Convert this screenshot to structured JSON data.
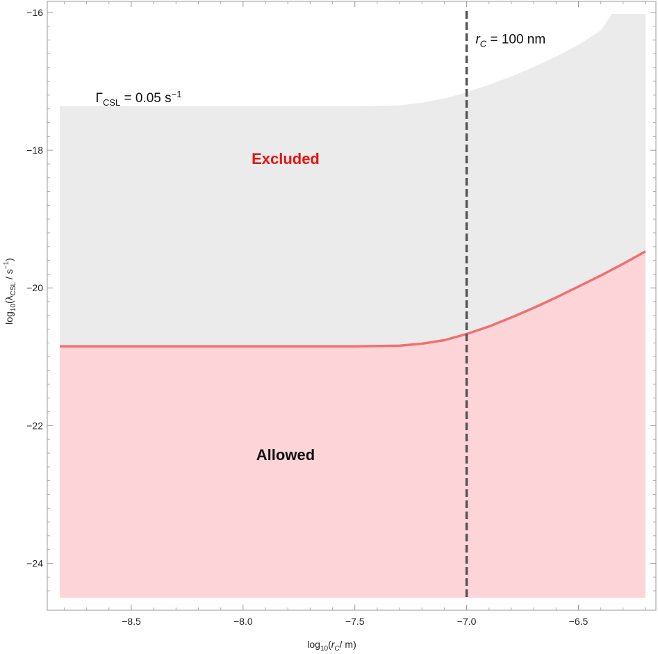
{
  "chart_data": {
    "type": "area",
    "xlabel_parts": {
      "pre": "log",
      "sub": "10",
      "mid": "(",
      "var": "r",
      "var_sub": "C",
      "post": "/ m)"
    },
    "ylabel_parts": {
      "pre": "log",
      "sub": "10",
      "mid": "(λ",
      "var_sub": "CSL",
      "post": " / s",
      "sup": "−1",
      "close": ")"
    },
    "xlim": [
      -8.82,
      -6.2
    ],
    "ylim": [
      -24.5,
      -16.0
    ],
    "x_ticks": [
      -8.5,
      -8.0,
      -7.5,
      -7.0,
      -6.5
    ],
    "x_tick_labels": [
      "−8.5",
      "−8.0",
      "−7.5",
      "−7.0",
      "−6.5"
    ],
    "y_ticks": [
      -24,
      -22,
      -20,
      -18,
      -16
    ],
    "y_tick_labels": [
      "−24",
      "−22",
      "−20",
      "−18",
      "−16"
    ],
    "grid": false,
    "series": [
      {
        "role": "allowed-boundary",
        "color": "#f07070",
        "fill": "#fdd5d8",
        "x": [
          -8.82,
          -8.5,
          -8.0,
          -7.5,
          -7.3,
          -7.2,
          -7.1,
          -7.0,
          -6.9,
          -6.8,
          -6.7,
          -6.6,
          -6.5,
          -6.4,
          -6.3,
          -6.2
        ],
        "y": [
          -20.85,
          -20.85,
          -20.85,
          -20.85,
          -20.84,
          -20.81,
          -20.76,
          -20.67,
          -20.56,
          -20.43,
          -20.29,
          -20.14,
          -19.98,
          -19.82,
          -19.65,
          -19.47
        ]
      },
      {
        "role": "excluded-boundary",
        "color": "none",
        "fill": "#ebebeb",
        "x": [
          -8.82,
          -8.0,
          -7.5,
          -7.3,
          -7.2,
          -7.1,
          -7.0,
          -6.9,
          -6.8,
          -6.7,
          -6.6,
          -6.5,
          -6.4,
          -6.35,
          -6.2
        ],
        "y": [
          -17.36,
          -17.36,
          -17.36,
          -17.35,
          -17.31,
          -17.25,
          -17.16,
          -17.05,
          -16.93,
          -16.79,
          -16.64,
          -16.47,
          -16.26,
          -16.02,
          -16.02
        ]
      }
    ],
    "vline": {
      "x": -7.0,
      "color": "#555555",
      "style": "dashed"
    },
    "annotations": {
      "rc_label": {
        "var": "r",
        "sub": "C",
        "text": " = 100 nm",
        "x": -6.96,
        "y": -16.45
      },
      "gamma_label": {
        "pre": "Γ",
        "sub": "CSL",
        "text": " = 0.05 s",
        "sup": "−1",
        "x": -8.66,
        "y": -17.3
      },
      "excluded": {
        "text": "Excluded",
        "color": "#ee1111",
        "x": -7.81,
        "y": -18.2
      },
      "allowed": {
        "text": "Allowed",
        "color": "#111111",
        "x": -7.81,
        "y": -22.5
      }
    },
    "y_fill_bottom": -24.5
  }
}
